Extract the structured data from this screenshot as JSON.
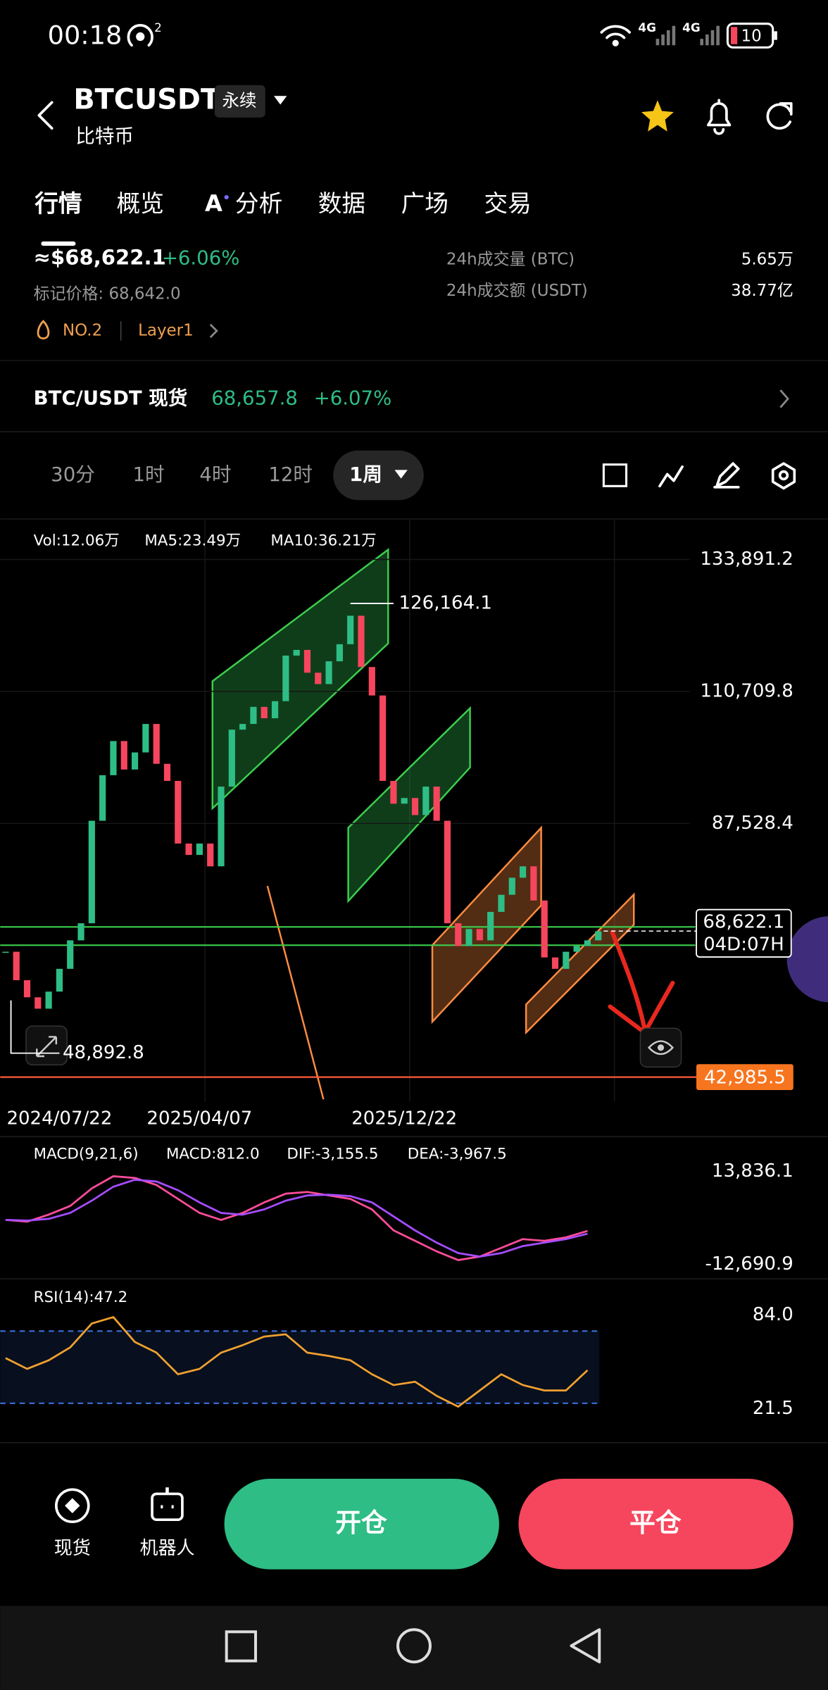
{
  "status_bar": {
    "time": "00:18",
    "hotspot_count": "2",
    "network_1": "4G",
    "network_2": "4G",
    "battery": "10"
  },
  "header": {
    "symbol": "BTCUSDT",
    "badge": "永续",
    "subtitle": "比特币"
  },
  "tabs": [
    "行情",
    "概览",
    "分析",
    "数据",
    "广场",
    "交易"
  ],
  "tab_icon": "A",
  "ticker": {
    "price": "≈$68,622.1",
    "change": "+6.06%",
    "mark_price": "标记价格: 68,642.0",
    "rank": "NO.2",
    "sector": "Layer1",
    "stats": [
      {
        "label": "24h成交量 (BTC)",
        "value": "5.65万"
      },
      {
        "label": "24h成交额 (USDT)",
        "value": "38.77亿"
      }
    ]
  },
  "spot": {
    "pair": "BTC/USDT 现货",
    "price": "68,657.8",
    "change": "+6.07%"
  },
  "timeframes": [
    "30分",
    "1时",
    "4时",
    "12时",
    "1周"
  ],
  "chart_data": [
    {
      "type": "candlestick",
      "indicators": [
        {
          "text": "Vol:12.06万",
          "color": "#f0a030"
        },
        {
          "text": "MA5:23.49万",
          "color": "#f0a030"
        },
        {
          "text": "MA10:36.21万",
          "color": "#c04dff"
        }
      ],
      "categories": [
        null,
        null,
        null,
        null,
        null,
        "2024/07/22",
        null,
        null,
        null,
        null,
        null,
        null,
        null,
        null,
        null,
        null,
        null,
        null,
        "2025/04/07",
        null,
        null,
        null,
        null,
        null,
        null,
        null,
        null,
        null,
        null,
        null,
        null,
        null,
        null,
        null,
        null,
        null,
        null,
        "2025/12/22",
        null,
        null,
        null,
        null,
        null,
        null,
        null,
        null,
        null,
        null,
        null,
        null,
        null,
        null,
        null,
        null,
        null,
        null
      ],
      "values": [
        65000,
        60000,
        57000,
        55000,
        58000,
        62000,
        67000,
        70000,
        88000,
        96000,
        102000,
        97000,
        100000,
        105000,
        98000,
        95000,
        84000,
        82000,
        84000,
        80000,
        94000,
        104000,
        105000,
        108000,
        106000,
        109000,
        117000,
        118000,
        114000,
        112000,
        116000,
        119000,
        124000,
        115000,
        110000,
        95000,
        91000,
        92000,
        89000,
        94000,
        88000,
        70000,
        66000,
        69000,
        67000,
        72000,
        75000,
        78000,
        80000,
        74000,
        64000,
        62000,
        65000,
        66000,
        67000,
        68600
      ],
      "up_color": "#2ebd85",
      "down_color": "#f6465d",
      "ylim": [
        38700,
        140900
      ],
      "yticks": [
        {
          "value": 133891.2,
          "label": "133,891.2"
        },
        {
          "value": 110709.8,
          "label": "110,709.8"
        },
        {
          "value": 87528.4,
          "label": "87,528.4"
        }
      ],
      "grid": true,
      "high": {
        "value": 126164.1,
        "label": "126,164.1"
      },
      "low": {
        "value": 48892.8,
        "label": "48,892.8"
      },
      "last_price": {
        "value": 68622.1,
        "label": "68,622.1",
        "countdown": "04D:07H"
      },
      "level": {
        "value": 42985.5,
        "label": "42,985.5"
      }
    },
    {
      "type": "line",
      "legend": [
        {
          "text": "MACD(9,21,6)",
          "color": "#9a9a9a"
        },
        {
          "text": "MACD:812.0",
          "color": "#f0a030"
        },
        {
          "text": "DIF:-3,155.5",
          "color": "#ff4d8d"
        },
        {
          "text": "DEA:-3,967.5",
          "color": "#b44dff"
        }
      ],
      "series": [
        {
          "color": "#ff4d9a",
          "values": [
            0,
            -500,
            1500,
            4000,
            9000,
            12500,
            12000,
            10000,
            6000,
            2000,
            0,
            2000,
            5000,
            7500,
            8000,
            7000,
            6000,
            3000,
            -3000,
            -6000,
            -9000,
            -11500,
            -10500,
            -8000,
            -5500,
            -6000,
            -5000,
            -3155.5
          ]
        },
        {
          "color": "#a64dff",
          "values": [
            0,
            -200,
            300,
            2000,
            5500,
            9500,
            11500,
            11000,
            8500,
            5000,
            2000,
            1500,
            3000,
            5500,
            7000,
            7200,
            6800,
            5000,
            1000,
            -3000,
            -6500,
            -9500,
            -10500,
            -9500,
            -7500,
            -6500,
            -5500,
            -3967.5
          ]
        }
      ],
      "ylim": [
        -16400,
        23700
      ],
      "yticks": [
        {
          "value": 13836.1,
          "label": "13,836.1"
        },
        {
          "value": -12690.9,
          "label": "-12,690.9"
        }
      ]
    },
    {
      "type": "line",
      "legend": [
        {
          "text": "RSI(14):47.2",
          "color": "#f0a030"
        }
      ],
      "series": [
        {
          "color": "#f0a030",
          "values": [
            55.3,
            48.1,
            53.8,
            62.4,
            78.3,
            82.6,
            66,
            58.9,
            44.5,
            48.1,
            58.9,
            63.9,
            69.6,
            71.1,
            58.9,
            56.7,
            53.8,
            44.5,
            37.3,
            39.5,
            30.1,
            22.9,
            33.7,
            44.5,
            37.3,
            33.7,
            33.7,
            47.2
          ]
        }
      ],
      "ylim": [
        12.2,
        105.6
      ],
      "yticks": [
        {
          "value": 84,
          "label": "84.0"
        },
        {
          "value": 21.5,
          "label": "21.5"
        }
      ]
    }
  ],
  "bottom_bar": {
    "actions": [
      "现货",
      "机器人"
    ],
    "open": "开仓",
    "close": "平仓"
  }
}
